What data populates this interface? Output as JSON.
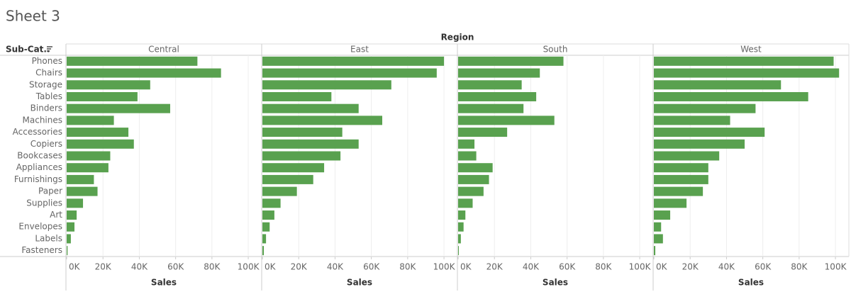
{
  "chart_data": {
    "type": "bar",
    "orientation": "horizontal",
    "title": "Sheet 3",
    "column_header": "Region",
    "row_header": "Sub-Cat..",
    "x_label": "Sales",
    "categories": [
      "Phones",
      "Chairs",
      "Storage",
      "Tables",
      "Binders",
      "Machines",
      "Accessories",
      "Copiers",
      "Bookcases",
      "Appliances",
      "Furnishings",
      "Paper",
      "Supplies",
      "Art",
      "Envelopes",
      "Labels",
      "Fasteners"
    ],
    "series": [
      {
        "name": "Central",
        "color": "#59a14f",
        "values": [
          72000,
          85000,
          46000,
          39000,
          57000,
          26000,
          34000,
          37000,
          24000,
          23000,
          15000,
          17000,
          9000,
          5500,
          4300,
          2300,
          500
        ]
      },
      {
        "name": "East",
        "color": "#59a14f",
        "values": [
          100000,
          96000,
          71000,
          38000,
          53000,
          66000,
          44000,
          53000,
          43000,
          34000,
          28000,
          19000,
          10000,
          6600,
          4000,
          2000,
          800
        ]
      },
      {
        "name": "South",
        "color": "#59a14f",
        "values": [
          58000,
          45000,
          35000,
          43000,
          36000,
          53000,
          27000,
          9000,
          10000,
          19000,
          17000,
          14000,
          8000,
          4000,
          3000,
          1500,
          400
        ]
      },
      {
        "name": "West",
        "color": "#59a14f",
        "values": [
          99000,
          102000,
          70000,
          85000,
          56000,
          42000,
          61000,
          50000,
          36000,
          30000,
          30000,
          27000,
          18000,
          9000,
          4000,
          5000,
          800
        ]
      }
    ],
    "xlim": [
      0,
      107000
    ],
    "xticks": [
      {
        "value": 0,
        "label": "0K"
      },
      {
        "value": 20000,
        "label": "20K"
      },
      {
        "value": 40000,
        "label": "40K"
      },
      {
        "value": 60000,
        "label": "60K"
      },
      {
        "value": 80000,
        "label": "80K"
      },
      {
        "value": 100000,
        "label": "100K"
      }
    ],
    "grid": true
  }
}
